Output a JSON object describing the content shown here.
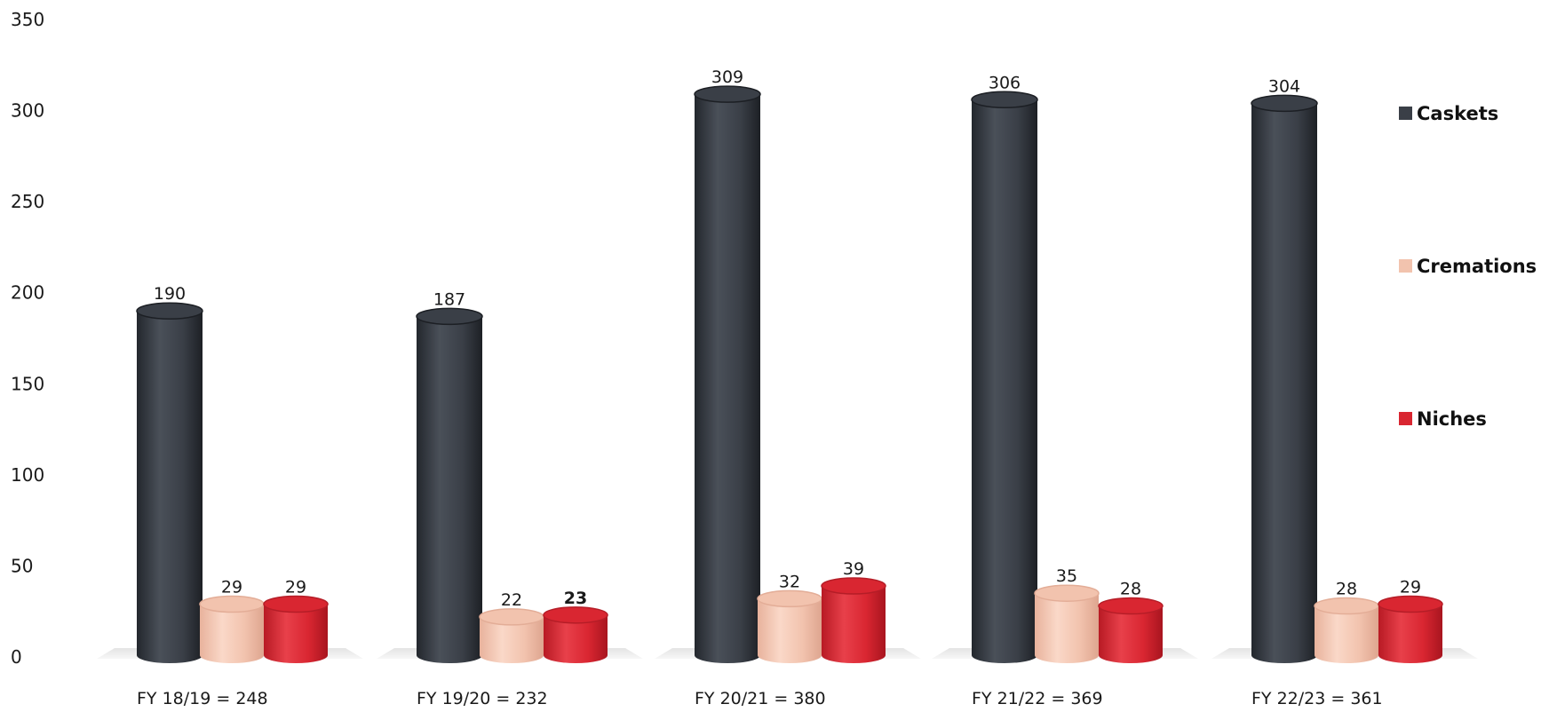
{
  "chart_data": {
    "type": "bar",
    "title": "",
    "xlabel": "",
    "ylabel": "",
    "ylim": [
      0,
      350
    ],
    "yticks": [
      0,
      50,
      100,
      150,
      200,
      250,
      300,
      350
    ],
    "grid": false,
    "legend_position": "right",
    "categories": [
      "FY  18/19 = 248",
      "FY  19/20 = 232",
      "FY  20/21 = 380",
      "FY  21/22 = 369",
      "FY  22/23 = 361"
    ],
    "series": [
      {
        "name": "Caskets",
        "color": "#3a3f47",
        "values": [
          190,
          187,
          309,
          306,
          304
        ]
      },
      {
        "name": "Cremations",
        "color": "#f2c3ae",
        "values": [
          29,
          22,
          32,
          35,
          28
        ]
      },
      {
        "name": "Niches",
        "color": "#d92631",
        "values": [
          29,
          23,
          39,
          28,
          29
        ]
      }
    ],
    "highlighted_labels": [
      {
        "series": 2,
        "category": 1,
        "color": "#d92631"
      }
    ]
  }
}
